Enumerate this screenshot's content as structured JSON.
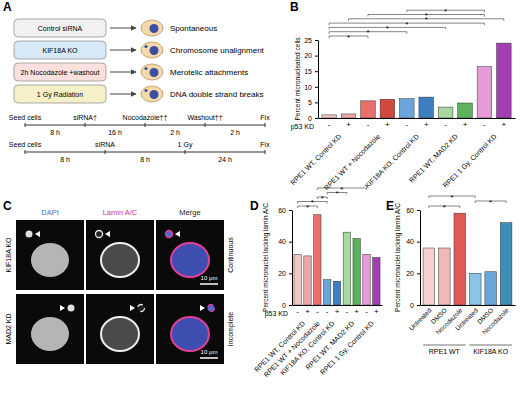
{
  "panel_labels": [
    "A",
    "B",
    "C",
    "D",
    "E"
  ],
  "panel_a": {
    "conditions": [
      {
        "treatment": "Control siRNA",
        "outcome": "Spontaneous"
      },
      {
        "treatment": "KIF18A KO",
        "outcome": "Chromosome unalignment"
      },
      {
        "treatment": "2h Nocodazole +washout",
        "outcome": "Merotelic attachments"
      },
      {
        "treatment": "1 Gy Radiation",
        "outcome": "DNA double strand breaks"
      }
    ],
    "timelines": [
      {
        "events": [
          "Seed cells",
          "siRNA†",
          "Nocodazole††",
          "Washout††",
          "Fix"
        ],
        "intervals": [
          "8 h",
          "16 h",
          "2 h",
          "2 h"
        ]
      },
      {
        "events": [
          "Seed cells",
          "siRNA",
          "1 Gy",
          "Fix"
        ],
        "intervals": [
          "8 h",
          "8 h",
          "24 h"
        ]
      }
    ]
  },
  "panel_c": {
    "columns": [
      "DAPI",
      "Lamin A/C",
      "Merge"
    ],
    "rows": [
      {
        "label": "KIF18A KO",
        "lamina": "Continuous",
        "scale_bar": "10 μm"
      },
      {
        "label": "MAD2 KD",
        "lamina": "Incomplete",
        "scale_bar": "10 μm"
      }
    ]
  },
  "chart_data": [
    {
      "type": "bar",
      "y_label": "Percent micronucleated cells",
      "x_label": "p53 KD",
      "categories": [
        "-",
        "+",
        "-",
        "+",
        "-",
        "+",
        "-",
        "+",
        "-",
        "+"
      ],
      "values": [
        1.0,
        1.3,
        5.5,
        6.0,
        6.2,
        6.7,
        3.5,
        4.8,
        16.5,
        24
      ],
      "colors": [
        "#f4c5c5",
        "#eaa9a9",
        "#e8716b",
        "#d2473f",
        "#6aa6dc",
        "#3d7fc1",
        "#a6d9a0",
        "#5bb35a",
        "#e69ad8",
        "#a23fb2"
      ],
      "ylim": [
        0,
        25
      ],
      "yticks": [
        0,
        5,
        10,
        15,
        20,
        25
      ],
      "groups": [
        {
          "label": "RPE1 WT, Control KD",
          "members": [
            0,
            1
          ]
        },
        {
          "label": "RPE1 WT + Nocodazole",
          "members": [
            2,
            3
          ]
        },
        {
          "label": "KIF18A KO, Control KD",
          "members": [
            4,
            5
          ]
        },
        {
          "label": "RPE1 WT, MAD2 KD",
          "members": [
            6,
            7
          ]
        },
        {
          "label": "RPE1 1 Gy, Control KD",
          "members": [
            8,
            9
          ]
        }
      ],
      "significance": [
        {
          "from": 0,
          "to": 2,
          "label": "*"
        },
        {
          "from": 0,
          "to": 4,
          "label": "*"
        },
        {
          "from": 0,
          "to": 6,
          "label": "*"
        },
        {
          "from": 0,
          "to": 8,
          "label": "*"
        },
        {
          "from": 1,
          "to": 9,
          "label": "*"
        },
        {
          "from": 2,
          "to": 8,
          "label": "*"
        },
        {
          "from": 4,
          "to": 8,
          "label": "*"
        }
      ]
    },
    {
      "type": "bar",
      "y_label": "Percent micronuclei lacking lamin A/C",
      "x_label": "p53 KD",
      "categories": [
        "-",
        "+",
        "-",
        "-",
        "+",
        "-",
        "+",
        "-",
        "+"
      ],
      "values": [
        32,
        31,
        57,
        16,
        15,
        46,
        42,
        32,
        30
      ],
      "colors": [
        "#f4c5c5",
        "#eaa9a9",
        "#e8716b",
        "#6aa6dc",
        "#3d7fc1",
        "#a6d9a0",
        "#5bb35a",
        "#e69ad8",
        "#a23fb2"
      ],
      "ylim": [
        0,
        60
      ],
      "yticks": [
        0,
        20,
        40,
        60
      ],
      "groups": [
        {
          "label": "RPE1 WT, Control KD",
          "members": [
            0,
            1
          ]
        },
        {
          "label": "RPE1 WT + Nocodazole",
          "members": [
            2
          ]
        },
        {
          "label": "KIF18A KO, Control KD",
          "members": [
            3,
            4
          ]
        },
        {
          "label": "RPE1 WT, MAD2 KD",
          "members": [
            5,
            6
          ]
        },
        {
          "label": "RPE1 1 Gy, Control KD",
          "members": [
            7,
            8
          ]
        }
      ],
      "significance": [
        {
          "from": 0,
          "to": 2,
          "label": "*"
        },
        {
          "from": 0,
          "to": 3,
          "label": "*"
        },
        {
          "from": 2,
          "to": 3,
          "label": "*"
        },
        {
          "from": 3,
          "to": 5,
          "label": "*"
        },
        {
          "from": 2,
          "to": 7,
          "label": "*"
        }
      ]
    },
    {
      "type": "bar",
      "y_label": "Percent micronuclei lacking lamin A/C",
      "categories": [
        "Untreated",
        "DMSO",
        "Nocodazole",
        "Untreated",
        "DMSO",
        "Nocodazole"
      ],
      "values": [
        36,
        36,
        58,
        20,
        21,
        52
      ],
      "colors": [
        "#f6d0d0",
        "#f0b8b8",
        "#e05a55",
        "#8ec3e8",
        "#6aa6dc",
        "#3d8fb8"
      ],
      "ylim": [
        0,
        60
      ],
      "yticks": [
        0,
        20,
        40,
        60
      ],
      "groups": [
        {
          "label": "RPE1 WT",
          "members": [
            0,
            1,
            2
          ]
        },
        {
          "label": "KIF18A KO",
          "members": [
            3,
            4,
            5
          ]
        }
      ],
      "significance": [
        {
          "from": 0,
          "to": 2,
          "label": "*"
        },
        {
          "from": 3,
          "to": 5,
          "label": "*"
        },
        {
          "from": 0,
          "to": 3,
          "label": "*"
        }
      ]
    }
  ]
}
